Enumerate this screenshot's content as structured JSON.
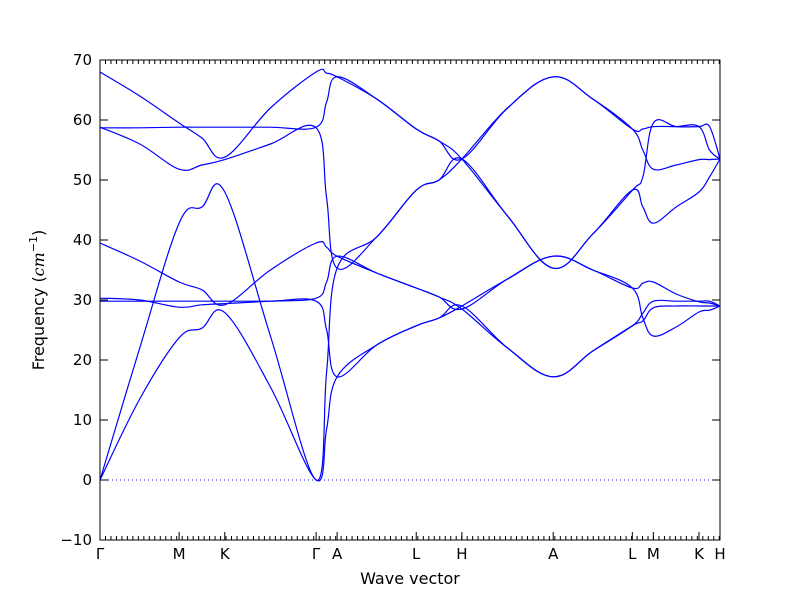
{
  "chart_data": {
    "type": "line",
    "title": "",
    "xlabel": "Wave vector",
    "ylabel_prefix": "Frequency (",
    "ylabel_unit": "cm",
    "ylabel_exp": "−1",
    "ylabel_suffix": ")",
    "ylim": [
      -10,
      70
    ],
    "y_ticks": [
      -10,
      0,
      10,
      20,
      30,
      40,
      50,
      60,
      70
    ],
    "x_ticks": [
      {
        "label": "Γ",
        "x": 0.0
      },
      {
        "label": "M",
        "x": 0.5774
      },
      {
        "label": "K",
        "x": 0.9107
      },
      {
        "label": "Γ",
        "x": 1.5774
      },
      {
        "label": "A",
        "x": 1.7307
      },
      {
        "label": "L",
        "x": 2.3081
      },
      {
        "label": "H",
        "x": 2.6414
      },
      {
        "label": "A",
        "x": 3.3081
      },
      {
        "label": "L",
        "x": 3.8855
      },
      {
        "label": "M",
        "x": 4.0388
      },
      {
        "label": "K",
        "x": 4.3721
      },
      {
        "label": "H",
        "x": 4.5254
      }
    ],
    "xlim": [
      0,
      4.5254
    ],
    "zero_line": 0,
    "series_color": "#0000ff",
    "series": [
      {
        "x": [
          0,
          0.29,
          0.5774,
          0.7441,
          0.9107,
          1.244,
          1.5774,
          1.654,
          1.7307,
          2.0194,
          2.3081,
          2.4748,
          2.6414,
          2.9748,
          3.3081,
          3.5968,
          3.8855,
          3.9621,
          4.0388,
          4.2055,
          4.3721,
          4.4488,
          4.5254
        ],
        "y": [
          0,
          13.5,
          23.7,
          25.3,
          27.9,
          15.5,
          0,
          8.5,
          17.2,
          22.5,
          25.7,
          27,
          29,
          33.5,
          37.3,
          35,
          32,
          27,
          24,
          25.5,
          28,
          28.3,
          29
        ]
      },
      {
        "x": [
          0,
          0.29,
          0.5774,
          0.7441,
          0.9107,
          1.244,
          1.5774,
          1.654,
          1.7307,
          2.0194,
          2.3081,
          2.4748,
          2.6414,
          2.9748,
          3.3081,
          3.5968,
          3.8855,
          3.9621,
          4.0388,
          4.2055,
          4.3721,
          4.4488,
          4.5254
        ],
        "y": [
          39.5,
          36.5,
          33,
          31.7,
          29.2,
          35,
          39.5,
          38.8,
          37.3,
          34.5,
          32,
          30.5,
          28.5,
          22,
          17.2,
          21.5,
          25.7,
          26.5,
          28.7,
          29,
          29,
          29,
          29
        ]
      },
      {
        "x": [
          0,
          0.29,
          0.5774,
          0.7441,
          0.9107,
          1.244,
          1.5774,
          1.654,
          1.7307,
          2.0194,
          2.3081,
          2.4748,
          2.6414,
          2.9748,
          3.3081,
          3.5968,
          3.8855,
          3.9621,
          4.0388,
          4.2055,
          4.3721,
          4.4488,
          4.5254
        ],
        "y": [
          30.3,
          30,
          28.8,
          29.2,
          29.4,
          29.8,
          30.3,
          33,
          37.3,
          34.5,
          32,
          30.5,
          28.5,
          33.5,
          37.3,
          35,
          32,
          32.8,
          33,
          31,
          29.7,
          29.5,
          29
        ]
      },
      {
        "x": [
          0,
          0.29,
          0.5774,
          0.7441,
          0.9107,
          1.244,
          1.5774,
          1.654,
          1.7307,
          2.0194,
          2.3081,
          2.4748,
          2.6414,
          2.9748,
          3.3081,
          3.5968,
          3.8855,
          3.9621,
          4.0388,
          4.2055,
          4.3721,
          4.4488,
          4.5254
        ],
        "y": [
          29.8,
          29.8,
          29.8,
          29.8,
          29.8,
          29.8,
          29.8,
          25,
          17.2,
          22.5,
          25.7,
          27,
          29,
          22,
          17.2,
          21.5,
          25.7,
          27.8,
          29.8,
          29.8,
          29.8,
          29.8,
          29
        ]
      },
      {
        "x": [
          0,
          0.29,
          0.5774,
          0.7441,
          0.9107,
          1.244,
          1.5774,
          1.654,
          1.7307,
          2.0194,
          2.3081,
          2.4748,
          2.6414,
          2.9748,
          3.3081,
          3.5968,
          3.8855,
          3.9621,
          4.0388,
          4.2055,
          4.3721,
          4.4488,
          4.5254
        ],
        "y": [
          0,
          22,
          42.8,
          45.5,
          48,
          24,
          0,
          18,
          35.3,
          40.5,
          48.3,
          50,
          53.5,
          62,
          67.2,
          63.5,
          58.5,
          55,
          51.8,
          52.5,
          53.4,
          53.4,
          53.5
        ]
      },
      {
        "x": [
          0,
          0.29,
          0.5774,
          0.7441,
          0.9107,
          1.244,
          1.5774,
          1.654,
          1.7307,
          2.0194,
          2.3081,
          2.4748,
          2.6414,
          2.9748,
          3.3081,
          3.5968,
          3.8855,
          3.9621,
          4.0388,
          4.2055,
          4.3721,
          4.4488,
          4.5254
        ],
        "y": [
          68,
          64,
          59.5,
          57,
          53.8,
          62,
          68,
          67.8,
          67.2,
          63.5,
          58.5,
          56.5,
          53.5,
          44,
          35.3,
          41,
          48.3,
          45.5,
          42.8,
          45.5,
          48,
          50.5,
          53.5
        ]
      },
      {
        "x": [
          0,
          0.29,
          0.5774,
          0.7441,
          0.9107,
          1.244,
          1.5774,
          1.654,
          1.7307,
          2.0194,
          2.3081,
          2.4748,
          2.6414,
          2.9748,
          3.3081,
          3.5968,
          3.8855,
          3.9621,
          4.0388,
          4.2055,
          4.3721,
          4.4488,
          4.5254
        ],
        "y": [
          58.8,
          56,
          51.8,
          52.5,
          53.4,
          56,
          58.7,
          47,
          35.3,
          40.5,
          48.3,
          50,
          53.5,
          44,
          35.3,
          41,
          48.3,
          50.5,
          59.5,
          58.9,
          58.9,
          58.9,
          53.5
        ]
      },
      {
        "x": [
          0,
          0.29,
          0.5774,
          0.7441,
          0.9107,
          1.244,
          1.5774,
          1.654,
          1.7307,
          2.0194,
          2.3081,
          2.4748,
          2.6414,
          2.9748,
          3.3081,
          3.5968,
          3.8855,
          3.9621,
          4.0388,
          4.2055,
          4.3721,
          4.4488,
          4.5254
        ],
        "y": [
          58.7,
          58.7,
          58.8,
          58.8,
          58.8,
          58.8,
          58.8,
          63,
          67.2,
          63.5,
          58.5,
          56.5,
          53.5,
          62,
          67.2,
          63.5,
          58.5,
          58.5,
          58.9,
          58.9,
          58.9,
          55,
          53.5
        ]
      }
    ]
  }
}
